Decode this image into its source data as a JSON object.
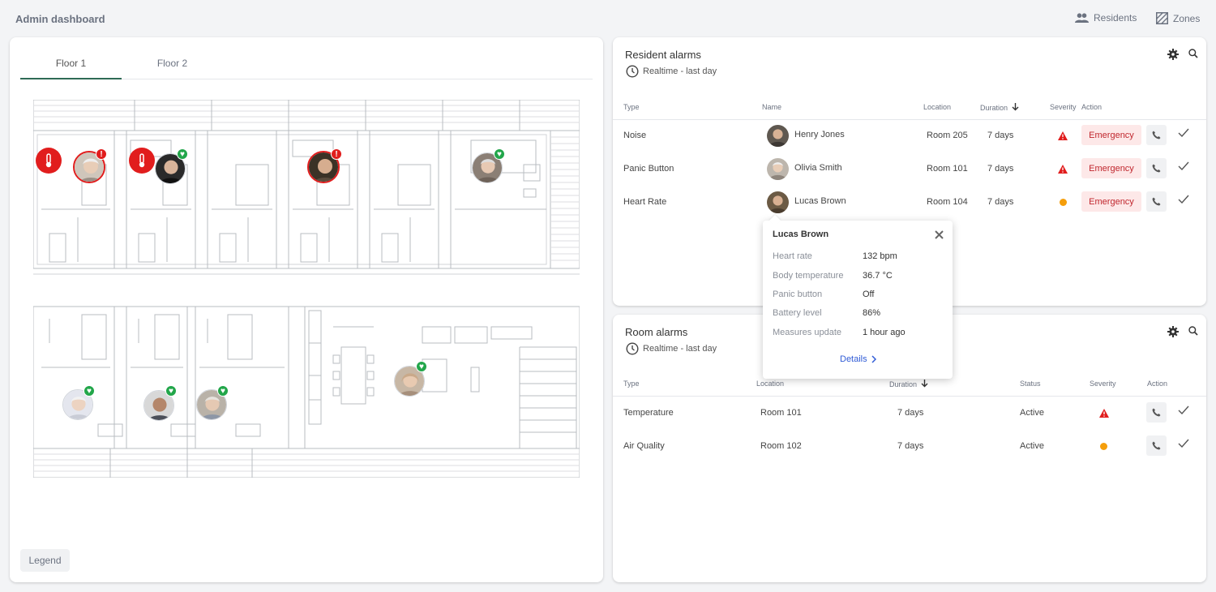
{
  "app": {
    "title": "Admin dashboard"
  },
  "nav": {
    "residents": {
      "label": "Residents",
      "icon": "people-icon"
    },
    "zones": {
      "label": "Zones",
      "icon": "zones-icon"
    }
  },
  "floors": {
    "tabs": [
      "Floor 1",
      "Floor 2"
    ],
    "active": "Floor 1"
  },
  "map": {
    "legend_label": "Legend",
    "markers": [
      {
        "type": "temperature-alert"
      },
      {
        "type": "resident",
        "status": "alert"
      },
      {
        "type": "temperature-alert"
      },
      {
        "type": "resident",
        "status": "ok"
      },
      {
        "type": "resident",
        "status": "alert"
      },
      {
        "type": "resident",
        "status": "ok"
      },
      {
        "type": "resident",
        "status": "ok"
      },
      {
        "type": "resident",
        "status": "ok"
      },
      {
        "type": "resident",
        "status": "ok"
      },
      {
        "type": "resident",
        "status": "ok"
      }
    ]
  },
  "resident_alarms": {
    "title": "Resident alarms",
    "subtitle": "Realtime - last day",
    "columns": {
      "type": "Type",
      "name": "Name",
      "location": "Location",
      "duration": "Duration",
      "severity": "Severity",
      "action": "Action"
    },
    "rows": [
      {
        "type": "Noise",
        "name": "Henry Jones",
        "location": "Room 205",
        "duration": "7 days",
        "severity": "high",
        "action": "Emergency"
      },
      {
        "type": "Panic Button",
        "name": "Olivia Smith",
        "location": "Room 101",
        "duration": "7 days",
        "severity": "high",
        "action": "Emergency"
      },
      {
        "type": "Heart Rate",
        "name": "Lucas Brown",
        "location": "Room 104",
        "duration": "7 days",
        "severity": "medium",
        "action": "Emergency"
      }
    ]
  },
  "room_alarms": {
    "title": "Room alarms",
    "subtitle": "Realtime - last day",
    "columns": {
      "type": "Type",
      "location": "Location",
      "duration": "Duration",
      "status": "Status",
      "severity": "Severity",
      "action": "Action"
    },
    "rows": [
      {
        "type": "Temperature",
        "location": "Room 101",
        "duration": "7 days",
        "status": "Active",
        "severity": "high"
      },
      {
        "type": "Air Quality",
        "location": "Room 102",
        "duration": "7 days",
        "status": "Active",
        "severity": "medium"
      }
    ]
  },
  "popup": {
    "name": "Lucas Brown",
    "fields": [
      {
        "label": "Heart rate",
        "value": "132 bpm"
      },
      {
        "label": "Body temperature",
        "value": "36.7 °C"
      },
      {
        "label": "Panic button",
        "value": "Off"
      },
      {
        "label": "Battery level",
        "value": "86%"
      },
      {
        "label": "Measures update",
        "value": "1 hour ago"
      }
    ],
    "details_label": "Details"
  },
  "colors": {
    "accent": "#2f6b55",
    "alert": "#e11d1d",
    "ok": "#22a64a",
    "warning": "#f59e0b",
    "link": "#2f5bd6"
  }
}
